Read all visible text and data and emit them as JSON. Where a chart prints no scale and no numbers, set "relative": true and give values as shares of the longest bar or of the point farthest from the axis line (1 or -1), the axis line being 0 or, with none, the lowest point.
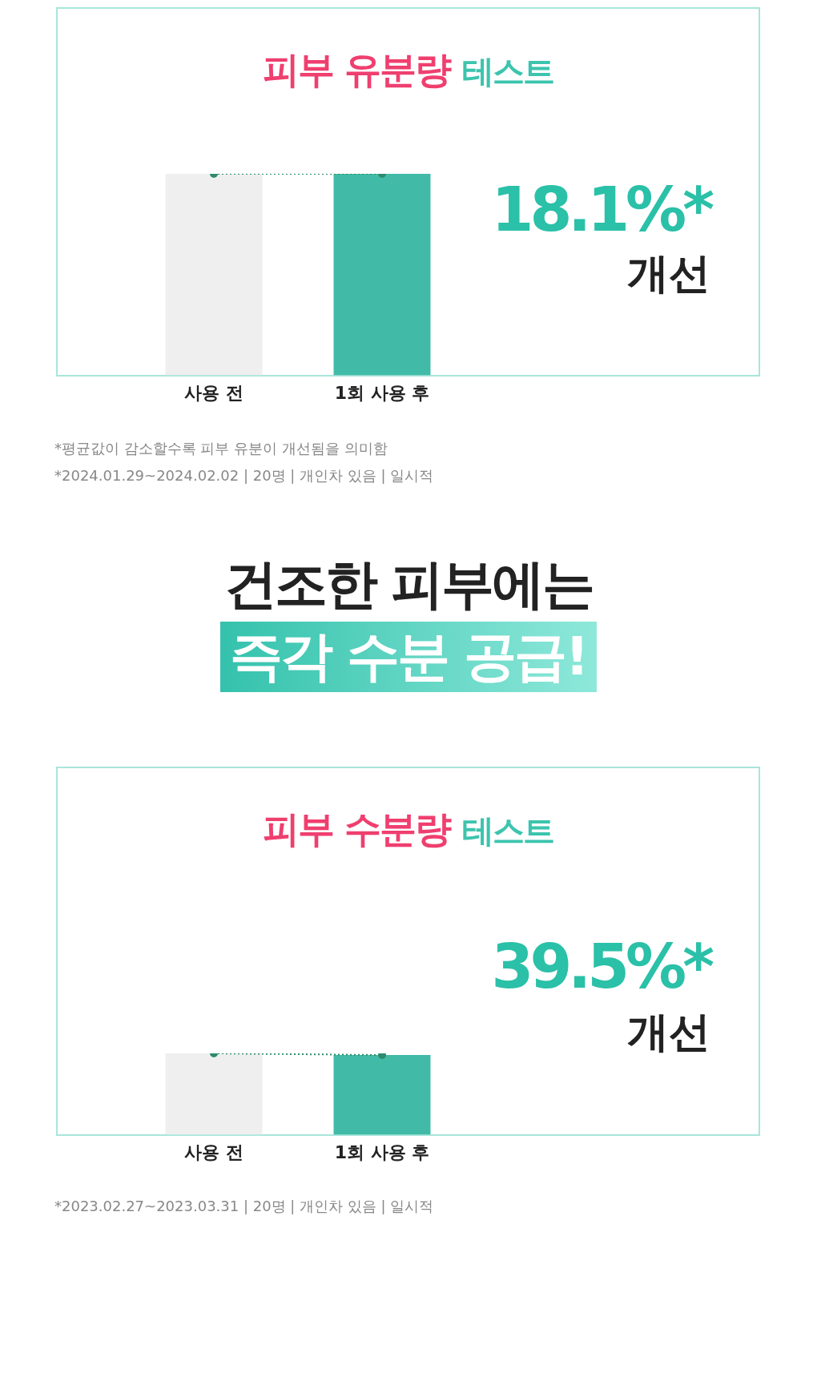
{
  "chart_data": [
    {
      "type": "bar",
      "title": "피부 유분량 테스트",
      "categories": [
        "사용 전",
        "1회 사용 후"
      ],
      "relative": true,
      "series": [
        {
          "type": "bar",
          "colors": [
            "#efefef",
            "#41bba8"
          ],
          "values": [
            1,
            1
          ]
        },
        {
          "type": "line",
          "color": "#2e8b6e",
          "values": [
            1,
            1
          ],
          "marker": "circle",
          "line_style": "dotted"
        }
      ],
      "annotations": [
        "18.1%*",
        "개선",
        "*평균값이 감소할수록 피부 유분이 개선됨을 의미함",
        "*2024.01.29~2024.02.02 | 20명 | 개인차 있음 | 일시적",
        "건조한 피부에는",
        "즉각 수분 공급!"
      ]
    },
    {
      "type": "bar",
      "title": "피부 수분량 테스트",
      "categories": [
        "사용 전",
        "1회 사용 후"
      ],
      "relative": true,
      "series": [
        {
          "type": "bar",
          "colors": [
            "#efefef",
            "#41bba8"
          ],
          "values": [
            1,
            0.98
          ]
        },
        {
          "type": "line",
          "color": "#2e8b6e",
          "values": [
            1,
            0.98
          ],
          "marker": "circle",
          "line_style": "dotted"
        }
      ],
      "annotations": [
        "39.5%*",
        "개선",
        "*2023.02.27~2023.03.31 | 20명 | 개인차 있음 | 일시적"
      ]
    }
  ]
}
